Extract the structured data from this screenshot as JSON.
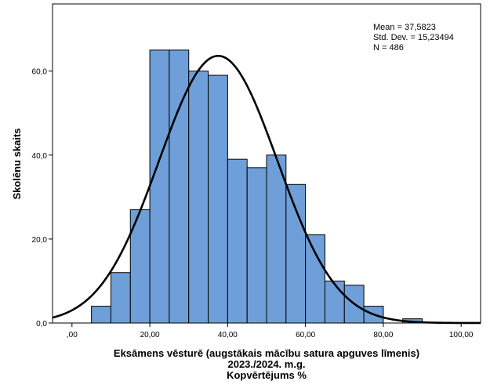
{
  "chart_data": {
    "type": "histogram",
    "xlabel": [
      "Eksāmens vēsturē (augstākais mācību satura apguves līmenis)",
      "2023./2024. m.g.",
      "Kopvērtējums %"
    ],
    "ylabel": "Skolēnu skaits",
    "xlim": [
      -5,
      105
    ],
    "ylim": [
      0,
      76
    ],
    "x_ticks": [
      0,
      20,
      40,
      60,
      80,
      100
    ],
    "x_tick_labels": [
      ",00",
      "20,00",
      "40,00",
      "60,00",
      "80,00",
      "100,00"
    ],
    "y_ticks": [
      0,
      20,
      40,
      60
    ],
    "y_tick_labels": [
      "0,0",
      "20,0",
      "40,0",
      "60,0"
    ],
    "bin_width": 5,
    "bin_starts": [
      5,
      10,
      15,
      20,
      25,
      30,
      35,
      40,
      45,
      50,
      55,
      60,
      65,
      70,
      75,
      80,
      85
    ],
    "values": [
      4,
      12,
      27,
      65,
      65,
      60,
      59,
      39,
      37,
      40,
      33,
      21,
      10,
      9,
      4,
      0,
      1
    ],
    "bar_color": "#6f9fd8",
    "curve": {
      "type": "normal",
      "mean": 37.5823,
      "std": 15.23494,
      "n": 486
    },
    "stats_lines": [
      "Mean = 37,5823",
      "Std. Dev. = 15,23494",
      "N = 486"
    ],
    "grid": false
  }
}
